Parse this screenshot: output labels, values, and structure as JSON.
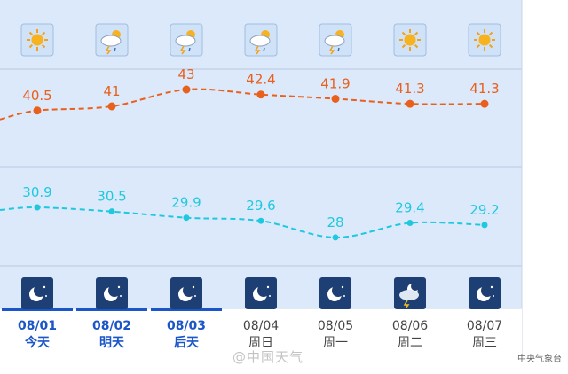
{
  "chart_data": {
    "type": "line",
    "categories": [
      {
        "date": "08/01",
        "weekday": "今天"
      },
      {
        "date": "08/02",
        "weekday": "明天"
      },
      {
        "date": "08/03",
        "weekday": "后天"
      },
      {
        "date": "08/04",
        "weekday": "周日"
      },
      {
        "date": "08/05",
        "weekday": "周一"
      },
      {
        "date": "08/06",
        "weekday": "周二"
      },
      {
        "date": "08/07",
        "weekday": "周三"
      }
    ],
    "series": [
      {
        "color": "#e8601c",
        "values": [
          40.5,
          41,
          43,
          42.4,
          41.9,
          41.3,
          41.3
        ],
        "labels": [
          "40.5",
          "41",
          "43",
          "42.4",
          "41.9",
          "41.3",
          "41.3"
        ]
      },
      {
        "color": "#1ec9df",
        "values": [
          30.9,
          30.5,
          29.9,
          29.6,
          28,
          29.4,
          29.2
        ],
        "labels": [
          "30.9",
          "30.5",
          "29.9",
          "29.6",
          "28",
          "29.4",
          "29.2"
        ]
      }
    ],
    "day_icons": [
      "sunny-icon",
      "thunder-shower-icon",
      "thunder-shower-icon",
      "thunder-shower-icon",
      "thunder-shower-icon",
      "sunny-icon",
      "sunny-icon"
    ],
    "night_icons": [
      "clear-night-icon",
      "clear-night-icon",
      "clear-night-icon",
      "clear-night-icon",
      "clear-night-icon",
      "night-thunder-shower-icon",
      "clear-night-icon"
    ],
    "highlight_color": "#1a56c8",
    "plot_bg": "#dce9fb"
  },
  "watermark": "@中国天气",
  "credit": "中央气象台"
}
